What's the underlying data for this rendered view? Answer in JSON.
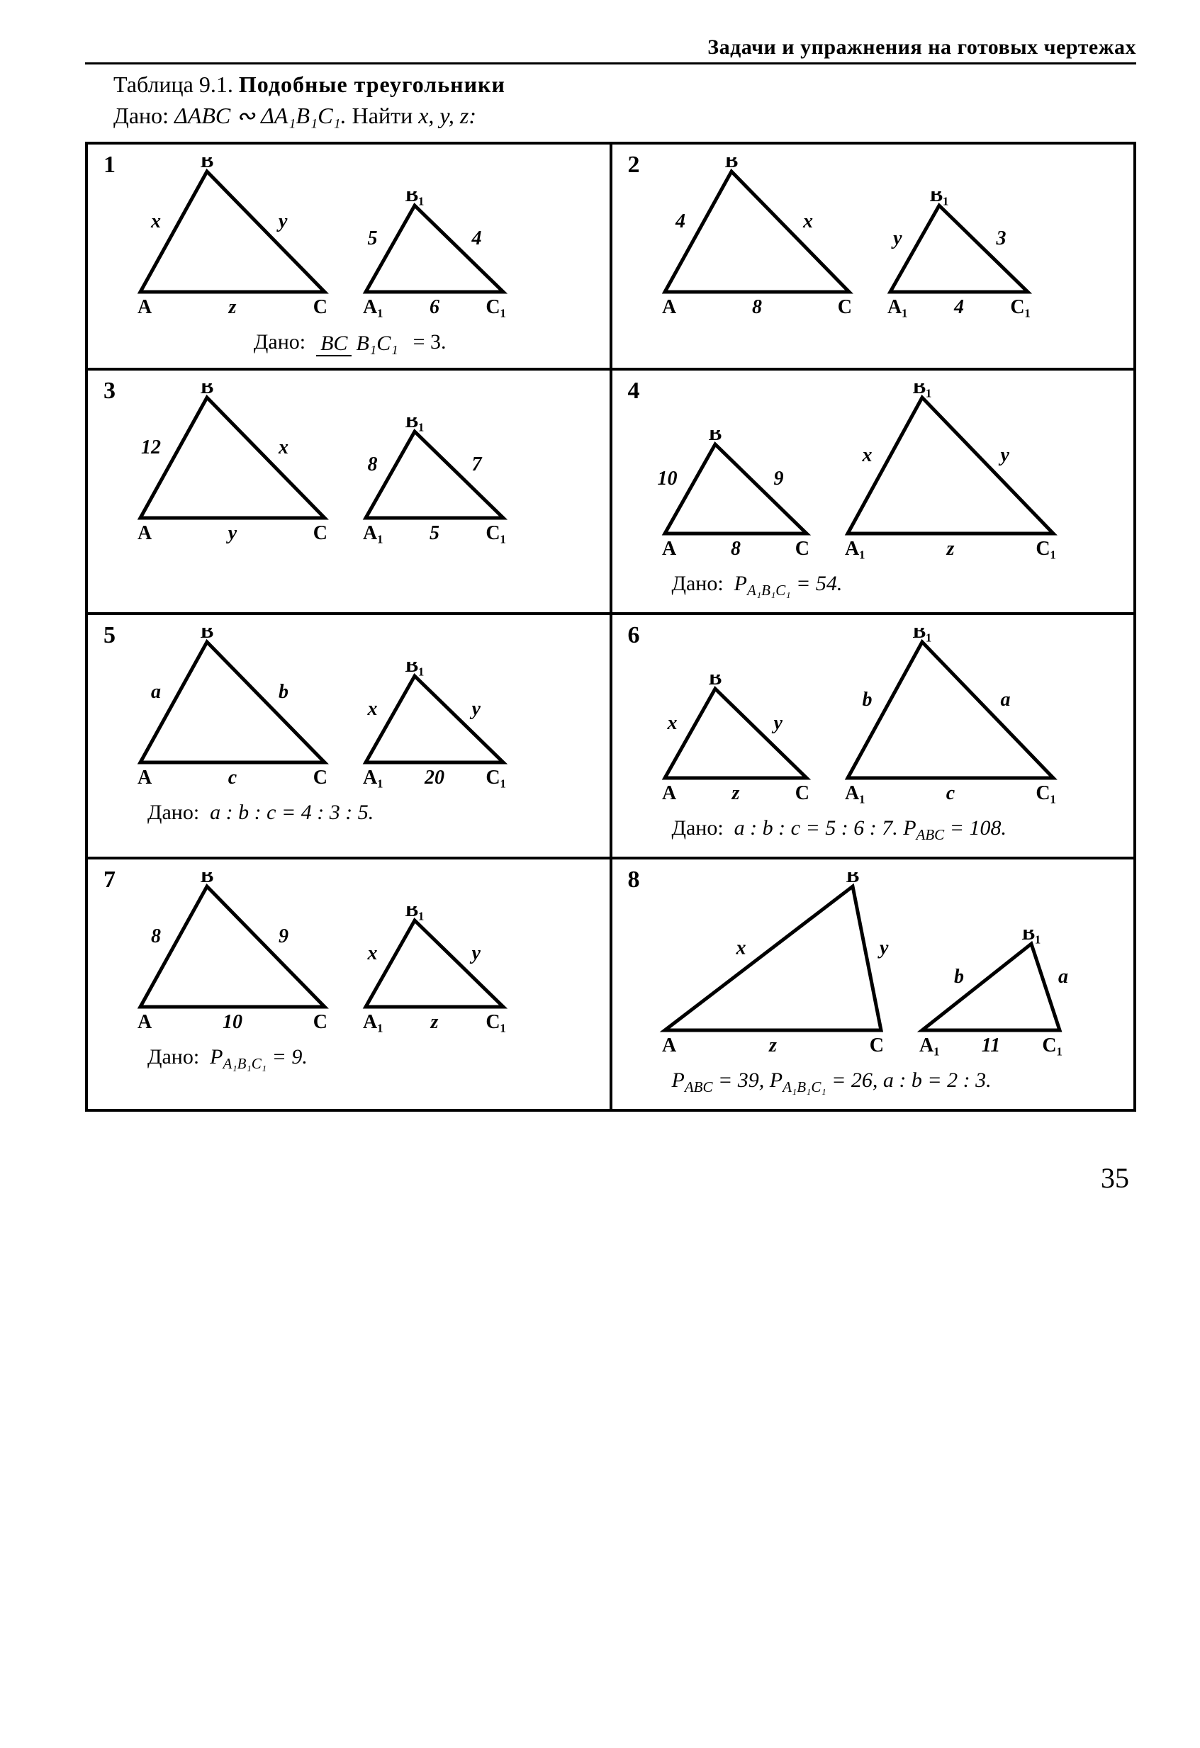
{
  "header": "Задачи и упражнения на готовых чертежах",
  "table_label": "Таблица 9.1.",
  "table_title": "Подобные треугольники",
  "given_prefix": "Дано:",
  "given_body": "ΔABC ∾ ΔA₁B₁C₁.",
  "find_prefix": "Найти",
  "find_vars": "x, y, z:",
  "page_number": "35",
  "stroke": "#000000",
  "lw": 5,
  "problems": {
    "1": {
      "num": "1",
      "tri1": {
        "ab": "x",
        "bc": "y",
        "ac": "z",
        "A": "A",
        "B": "B",
        "C": "C"
      },
      "tri2": {
        "ab": "5",
        "bc": "4",
        "ac": "6",
        "A": "A₁",
        "B": "B₁",
        "C": "C₁"
      },
      "cond_prefix": "Дано:",
      "frac_num": "BC",
      "frac_den": "B₁C₁",
      "frac_eq": "= 3."
    },
    "2": {
      "num": "2",
      "tri1": {
        "ab": "4",
        "bc": "x",
        "ac": "8",
        "A": "A",
        "B": "B",
        "C": "C"
      },
      "tri2": {
        "ab": "y",
        "bc": "3",
        "ac": "4",
        "A": "A₁",
        "B": "B₁",
        "C": "C₁"
      }
    },
    "3": {
      "num": "3",
      "tri1": {
        "ab": "12",
        "bc": "x",
        "ac": "y",
        "A": "A",
        "B": "B",
        "C": "C"
      },
      "tri2": {
        "ab": "8",
        "bc": "7",
        "ac": "5",
        "A": "A₁",
        "B": "B₁",
        "C": "C₁"
      }
    },
    "4": {
      "num": "4",
      "tri1": {
        "ab": "10",
        "bc": "9",
        "ac": "8",
        "A": "A",
        "B": "B",
        "C": "C",
        "small": true
      },
      "tri2": {
        "ab": "x",
        "bc": "y",
        "ac": "z",
        "A": "A₁",
        "B": "B₁",
        "C": "C₁",
        "big": true
      },
      "cond_prefix": "Дано:",
      "cond_html": "P<sub>A₁B₁C₁</sub> = 54."
    },
    "5": {
      "num": "5",
      "tri1": {
        "ab": "a",
        "bc": "b",
        "ac": "c",
        "A": "A",
        "B": "B",
        "C": "C"
      },
      "tri2": {
        "ab": "x",
        "bc": "y",
        "ac": "20",
        "A": "A₁",
        "B": "B₁",
        "C": "C₁"
      },
      "cond_prefix": "Дано:",
      "cond_text": "a : b : c = 4 : 3 : 5."
    },
    "6": {
      "num": "6",
      "tri1": {
        "ab": "x",
        "bc": "y",
        "ac": "z",
        "A": "A",
        "B": "B",
        "C": "C",
        "small": true
      },
      "tri2": {
        "ab": "b",
        "bc": "a",
        "ac": "c",
        "A": "A₁",
        "B": "B₁",
        "C": "C₁",
        "big": true
      },
      "cond_prefix": "Дано:",
      "cond_html": "a : b : c = 5 : 6 : 7.  P<sub>ABC</sub> = 108."
    },
    "7": {
      "num": "7",
      "tri1": {
        "ab": "8",
        "bc": "9",
        "ac": "10",
        "A": "A",
        "B": "B",
        "C": "C"
      },
      "tri2": {
        "ab": "x",
        "bc": "y",
        "ac": "z",
        "A": "A₁",
        "B": "B₁",
        "C": "C₁"
      },
      "cond_prefix": "Дано:",
      "cond_html": "P<sub>A₁B₁C₁</sub> = 9."
    },
    "8": {
      "num": "8",
      "tri1": {
        "ab": "x",
        "bc": "y",
        "ac": "z",
        "A": "A",
        "B": "B",
        "C": "C",
        "right": true,
        "big": true
      },
      "tri2": {
        "ab": "b",
        "bc": "a",
        "ac": "11",
        "A": "A₁",
        "B": "B₁",
        "C": "C₁",
        "right": true
      },
      "cond_html": "P<sub>ABC</sub> = 39, P<sub>A₁B₁C₁</sub> = 26, a : b = 2 : 3."
    }
  }
}
